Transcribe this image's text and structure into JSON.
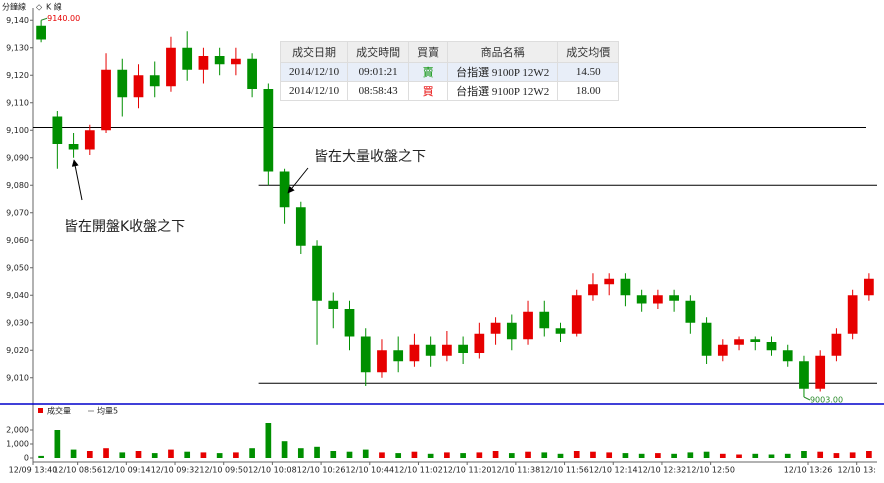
{
  "header": {
    "period": "分鐘線",
    "mode": "K 線"
  },
  "trades_table": {
    "columns": [
      "成交日期",
      "成交時間",
      "買賣",
      "商品名稱",
      "成交均價"
    ],
    "rows": [
      [
        "2014/12/10",
        "09:01:21",
        "賣",
        "台指選 9100P 12W2",
        "14.50"
      ],
      [
        "2014/12/10",
        "08:58:43",
        "買",
        "台指選 9100P 12W2",
        "18.00"
      ]
    ]
  },
  "chart_data": [
    {
      "type": "candlestick",
      "up_color": "#e60000",
      "down_color": "#008f00",
      "open": [
        9138,
        9105,
        9095,
        9093,
        9100,
        9122,
        9112,
        9120,
        9116,
        9130,
        9122,
        9127,
        9124,
        9126,
        9115,
        9085,
        9072,
        9058,
        9038,
        9035,
        9025,
        9012,
        9020,
        9016,
        9022,
        9018,
        9022,
        9019,
        9026,
        9030,
        9024,
        9034,
        9028,
        9026,
        9040,
        9044,
        9046,
        9040,
        9037,
        9040,
        9038,
        9030,
        9018,
        9022,
        9024,
        9023,
        9020,
        9016,
        9006,
        9018,
        9026,
        9040
      ],
      "high": [
        9140,
        9107,
        9099,
        9102,
        9128,
        9126,
        9124,
        9125,
        9134,
        9136,
        9130,
        9130,
        9130,
        9128,
        9117,
        9086,
        9074,
        9060,
        9041,
        9038,
        9028,
        9024,
        9025,
        9026,
        9025,
        9027,
        9025,
        9030,
        9032,
        9033,
        9038,
        9038,
        9030,
        9042,
        9048,
        9048,
        9048,
        9042,
        9042,
        9042,
        9040,
        9032,
        9024,
        9025,
        9025,
        9025,
        9022,
        9018,
        9020,
        9028,
        9042,
        9048
      ],
      "low": [
        9132,
        9086,
        9090,
        9091,
        9099,
        9105,
        9108,
        9112,
        9114,
        9118,
        9117,
        9120,
        9120,
        9112,
        9080,
        9066,
        9055,
        9022,
        9028,
        9020,
        9007,
        9010,
        9012,
        9014,
        9014,
        9016,
        9015,
        9017,
        9022,
        9020,
        9022,
        9025,
        9023,
        9025,
        9038,
        9040,
        9036,
        9034,
        9035,
        9034,
        9026,
        9015,
        9016,
        9020,
        9020,
        9018,
        9014,
        9003,
        9005,
        9016,
        9024,
        9038
      ],
      "close": [
        9133,
        9095,
        9093,
        9100,
        9122,
        9112,
        9120,
        9116,
        9130,
        9122,
        9127,
        9124,
        9126,
        9115,
        9085,
        9072,
        9058,
        9038,
        9035,
        9025,
        9012,
        9020,
        9016,
        9022,
        9018,
        9022,
        9019,
        9026,
        9030,
        9024,
        9034,
        9028,
        9026,
        9040,
        9044,
        9046,
        9040,
        9037,
        9040,
        9038,
        9030,
        9018,
        9022,
        9024,
        9023,
        9020,
        9016,
        9006,
        9018,
        9026,
        9040,
        9046
      ],
      "ylim": [
        9003,
        9143
      ],
      "yticks": [
        {
          "value": 9010,
          "label": "9,010"
        },
        {
          "value": 9020,
          "label": "9,020"
        },
        {
          "value": 9030,
          "label": "9,030"
        },
        {
          "value": 9040,
          "label": "9,040"
        },
        {
          "value": 9050,
          "label": "9,050"
        },
        {
          "value": 9060,
          "label": "9,060"
        },
        {
          "value": 9070,
          "label": "9,070"
        },
        {
          "value": 9080,
          "label": "9,080"
        },
        {
          "value": 9090,
          "label": "9,090"
        },
        {
          "value": 9100,
          "label": "9,100"
        },
        {
          "value": 9110,
          "label": "9,110"
        },
        {
          "value": 9120,
          "label": "9,120"
        },
        {
          "value": 9130,
          "label": "9,130"
        },
        {
          "value": 9140,
          "label": "9,140"
        }
      ],
      "hlines": [
        {
          "value": 9101,
          "start": 0
        },
        {
          "value": 9080,
          "start": 13.9
        },
        {
          "value": 9008,
          "start": 13.9
        }
      ],
      "extremes": [
        {
          "value": 9140,
          "label": "9140.00",
          "at": 0
        },
        {
          "value": 9003,
          "label": "9003.00",
          "at": 47
        }
      ],
      "annotations": [
        "皆在開盤K收盤之下",
        "皆在大量收盤之下"
      ]
    },
    {
      "type": "volume",
      "legend": [
        "成交量",
        "均量5"
      ],
      "color": "#e60000",
      "values": [
        150,
        2000,
        600,
        500,
        700,
        400,
        500,
        350,
        600,
        450,
        400,
        350,
        400,
        700,
        2500,
        1200,
        700,
        800,
        500,
        450,
        600,
        400,
        350,
        450,
        300,
        400,
        350,
        400,
        500,
        350,
        450,
        400,
        300,
        500,
        450,
        400,
        350,
        300,
        350,
        300,
        400,
        450,
        300,
        250,
        300,
        250,
        300,
        500,
        450,
        350,
        400,
        500
      ],
      "ylim": [
        0,
        3500
      ],
      "yticks": [
        0,
        {
          "value": 1000,
          "label": "1,000"
        },
        {
          "value": 2000,
          "label": "2,000"
        }
      ],
      "xlim": [
        0,
        52
      ],
      "xticks": [
        {
          "value": 0,
          "label": "12/09 13:40"
        },
        {
          "value": 2.75,
          "label": "12/10 08:56"
        },
        {
          "value": 5.75,
          "label": "12/10 09:14"
        },
        {
          "value": 8.75,
          "label": "12/10 09:32"
        },
        {
          "value": 11.75,
          "label": "12/10 09:50"
        },
        {
          "value": 14.75,
          "label": "12/10 10:08"
        },
        {
          "value": 17.75,
          "label": "12/10 10:26"
        },
        {
          "value": 20.75,
          "label": "12/10 10:44"
        },
        {
          "value": 23.75,
          "label": "12/10 11:02"
        },
        {
          "value": 26.75,
          "label": "12/10 11:20"
        },
        {
          "value": 29.75,
          "label": "12/10 11:38"
        },
        {
          "value": 32.75,
          "label": "12/10 11:56"
        },
        {
          "value": 35.75,
          "label": "12/10 12:14"
        },
        {
          "value": 38.75,
          "label": "12/10 12:32"
        },
        {
          "value": 41.75,
          "label": "12/10 12:50"
        },
        {
          "value": 47.75,
          "label": "12/10 13:26"
        },
        {
          "value": 50.75,
          "label": "12/10 13:"
        }
      ]
    }
  ]
}
